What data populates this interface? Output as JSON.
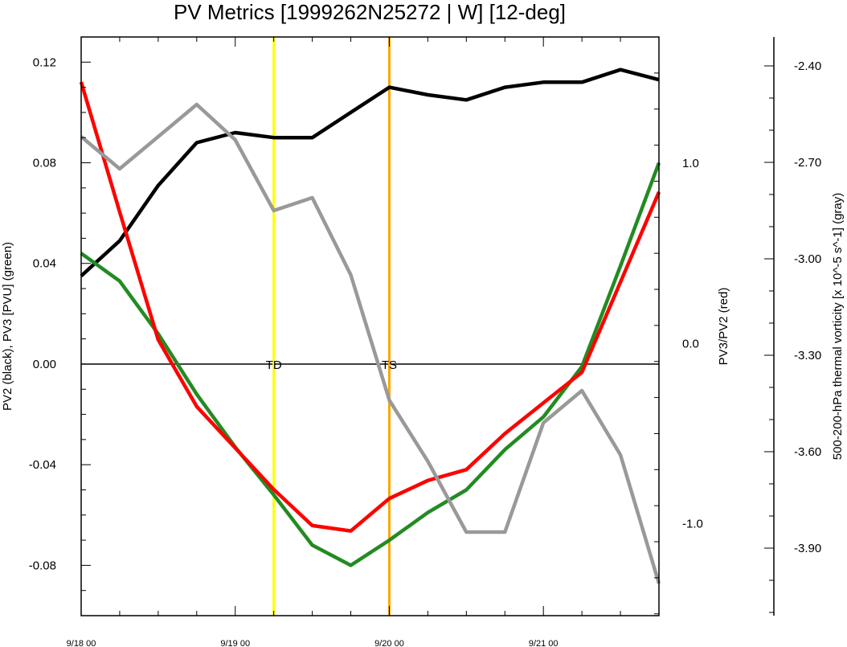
{
  "chart_data": {
    "type": "line",
    "title": "PV Metrics [1999262N25272 | W] [12-deg]",
    "x": [
      0,
      0.25,
      0.5,
      0.75,
      1,
      1.25,
      1.5,
      1.75,
      2,
      2.25,
      2.5,
      2.75,
      3,
      3.25,
      3.5,
      3.75
    ],
    "xlim": [
      0,
      3.75
    ],
    "xticks": [
      {
        "v": 0,
        "label": "9/18 00"
      },
      {
        "v": 1,
        "label": "9/19 00"
      },
      {
        "v": 2,
        "label": "9/20 00"
      },
      {
        "v": 3,
        "label": "9/21 00"
      }
    ],
    "axes": {
      "left": {
        "label": "PV2 (black), PV3 [PVU] (green)",
        "lim": [
          -0.1,
          0.13
        ],
        "ticks": [
          -0.08,
          -0.04,
          0.0,
          0.04,
          0.08,
          0.12
        ],
        "labels": [
          "-0.08",
          "-0.04",
          "0.00",
          "0.04",
          "0.08",
          "0.12"
        ]
      },
      "right": {
        "label": "PV3/PV2 (red)",
        "lim": [
          -1.51,
          1.7
        ],
        "ticks": [
          -1.0,
          0.0,
          1.0
        ],
        "labels": [
          "-1.0",
          "0.0",
          "1.0"
        ]
      },
      "far": {
        "label": "500-200-hPa thermal vorticity [x 10^-5 s^-1] (gray)",
        "lim": [
          -4.11,
          -2.31
        ],
        "ticks": [
          -3.9,
          -3.6,
          -3.3,
          -3.0,
          -2.7,
          -2.4
        ],
        "labels": [
          "-3.90",
          "-3.60",
          "-3.30",
          "-3.00",
          "-2.70",
          "-2.40"
        ]
      }
    },
    "series": [
      {
        "color": "#000000",
        "axis": "left",
        "values": [
          0.035,
          0.049,
          0.071,
          0.088,
          0.092,
          0.09,
          0.09,
          0.1,
          0.11,
          0.107,
          0.105,
          0.11,
          0.112,
          0.112,
          0.117,
          0.113
        ]
      },
      {
        "color": "#228b22",
        "axis": "left",
        "values": [
          0.044,
          0.033,
          0.012,
          -0.012,
          -0.033,
          -0.052,
          -0.072,
          -0.08,
          -0.07,
          -0.059,
          -0.05,
          -0.034,
          -0.021,
          -0.001,
          0.039,
          0.08
        ]
      },
      {
        "color": "#ff0000",
        "axis": "right",
        "values": [
          1.45,
          0.73,
          0.02,
          -0.35,
          -0.58,
          -0.81,
          -1.01,
          -1.04,
          -0.86,
          -0.76,
          -0.7,
          -0.5,
          -0.33,
          -0.16,
          0.34,
          0.84
        ]
      },
      {
        "color": "#999999",
        "axis": "far",
        "values": [
          -2.62,
          -2.72,
          -2.62,
          -2.52,
          -2.63,
          -2.85,
          -2.81,
          -3.05,
          -3.44,
          -3.63,
          -3.85,
          -3.85,
          -3.51,
          -3.41,
          -3.61,
          -4.01
        ]
      }
    ],
    "hlines": [
      {
        "axis": "left",
        "v": 0.0,
        "color": "#000000"
      }
    ],
    "vlines": [
      {
        "v": 1.25,
        "color": "#ffff00",
        "label": "TD"
      },
      {
        "v": 2.0,
        "color": "#ffa500",
        "label": "TS"
      }
    ]
  }
}
